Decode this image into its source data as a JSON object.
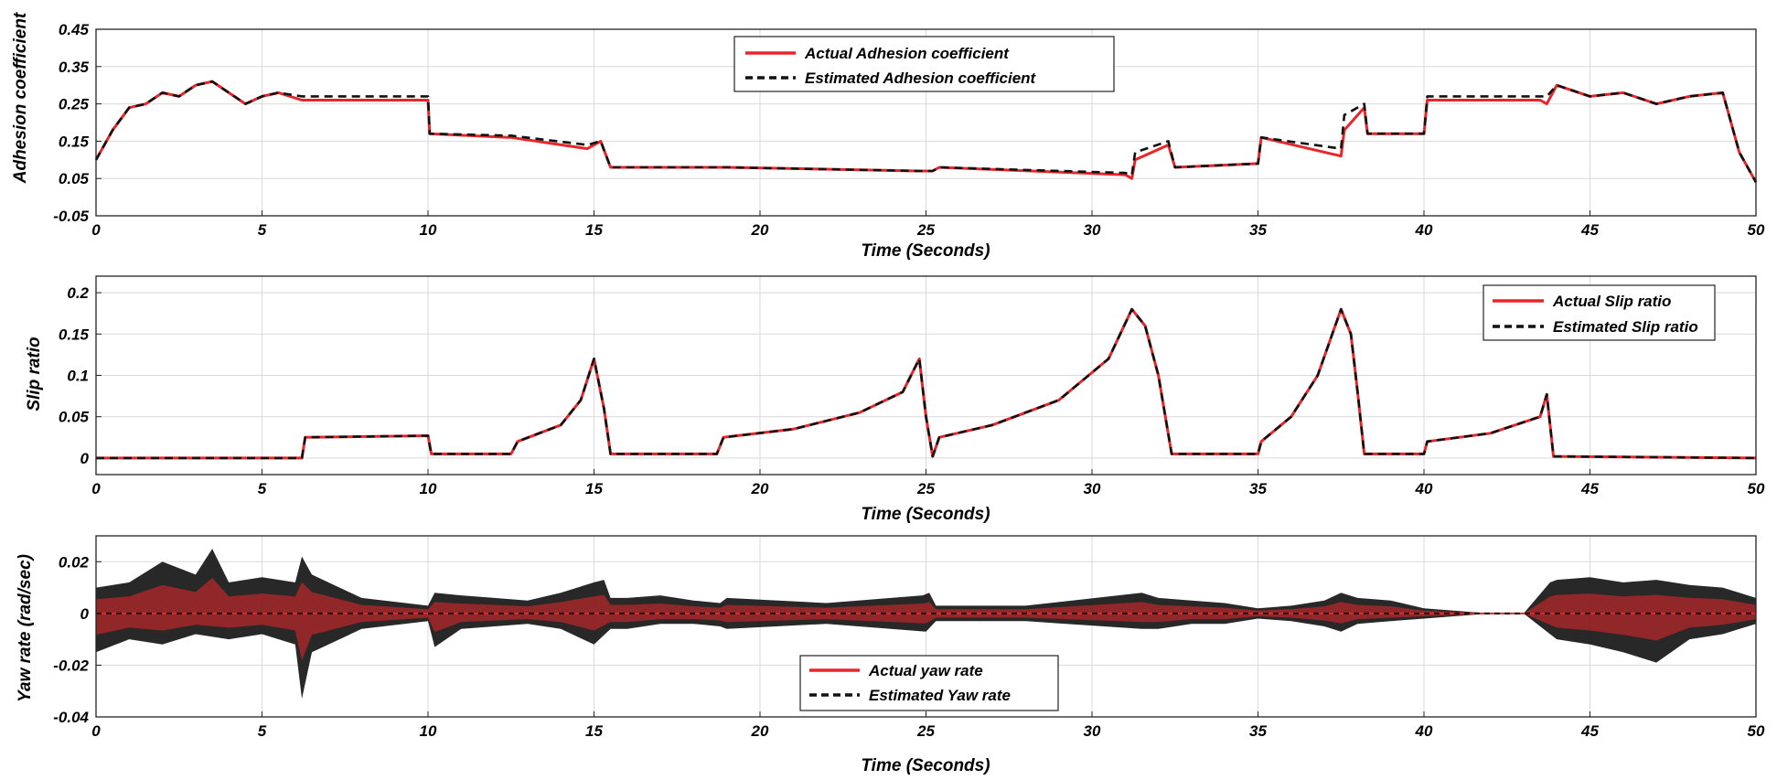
{
  "chart_data": [
    {
      "type": "line",
      "xlabel": "Time (Seconds)",
      "ylabel": "Adhesion coefficient",
      "xlim": [
        0,
        50
      ],
      "ylim": [
        -0.05,
        0.45
      ],
      "xticks": [
        0,
        5,
        10,
        15,
        20,
        25,
        30,
        35,
        40,
        45,
        50
      ],
      "yticks": [
        -0.05,
        0.05,
        0.15,
        0.25,
        0.35,
        0.45
      ],
      "ytick_labels": [
        "-0.05",
        "0.05",
        "0.15",
        "0.25",
        "0.35",
        "0.45"
      ],
      "grid": true,
      "legend": "top-center",
      "series": [
        {
          "name": "Actual Adhesion coefficient",
          "color": "#e8262a",
          "style": "solid",
          "x": [
            0,
            0.5,
            1,
            1.5,
            2,
            2.5,
            3,
            3.5,
            4,
            4.5,
            5,
            5.5,
            6.2,
            6.25,
            10,
            10.05,
            12.4,
            12.5,
            14.8,
            15.2,
            15.5,
            18.8,
            19,
            24.8,
            25.2,
            25.4,
            31,
            31.2,
            31.3,
            32.3,
            32.5,
            35,
            35.1,
            37.5,
            37.6,
            38.2,
            38.3,
            40,
            40.1,
            43.5,
            43.7,
            44,
            45,
            46,
            47,
            48,
            49,
            49.5,
            50
          ],
          "y": [
            0.1,
            0.18,
            0.24,
            0.25,
            0.28,
            0.27,
            0.3,
            0.31,
            0.28,
            0.25,
            0.27,
            0.28,
            0.26,
            0.26,
            0.26,
            0.17,
            0.16,
            0.16,
            0.13,
            0.15,
            0.08,
            0.08,
            0.08,
            0.07,
            0.07,
            0.08,
            0.06,
            0.05,
            0.1,
            0.14,
            0.08,
            0.09,
            0.16,
            0.11,
            0.18,
            0.24,
            0.17,
            0.17,
            0.26,
            0.26,
            0.25,
            0.3,
            0.27,
            0.28,
            0.25,
            0.27,
            0.28,
            0.12,
            0.04
          ]
        },
        {
          "name": "Estimated Adhesion coefficient",
          "color": "#111111",
          "style": "dashed",
          "x": [
            0,
            0.5,
            1,
            1.5,
            2,
            2.5,
            3,
            3.5,
            4,
            4.5,
            5,
            5.5,
            6.2,
            6.25,
            10,
            10.05,
            12.4,
            12.5,
            14.8,
            15.2,
            15.5,
            18.8,
            19,
            24.8,
            25.2,
            25.4,
            31,
            31.2,
            31.3,
            32.3,
            32.5,
            35,
            35.1,
            37.5,
            37.6,
            38.2,
            38.3,
            40,
            40.1,
            43.5,
            43.7,
            44,
            45,
            46,
            47,
            48,
            49,
            49.5,
            50
          ],
          "y": [
            0.1,
            0.18,
            0.24,
            0.25,
            0.28,
            0.27,
            0.3,
            0.31,
            0.28,
            0.25,
            0.27,
            0.28,
            0.27,
            0.27,
            0.27,
            0.17,
            0.165,
            0.165,
            0.14,
            0.15,
            0.08,
            0.08,
            0.08,
            0.07,
            0.07,
            0.08,
            0.065,
            0.06,
            0.12,
            0.15,
            0.08,
            0.09,
            0.16,
            0.13,
            0.22,
            0.25,
            0.17,
            0.17,
            0.27,
            0.27,
            0.27,
            0.3,
            0.27,
            0.28,
            0.25,
            0.27,
            0.28,
            0.12,
            0.04
          ]
        }
      ]
    },
    {
      "type": "line",
      "xlabel": "Time (Seconds)",
      "ylabel": "Slip ratio",
      "xlim": [
        0,
        50
      ],
      "ylim": [
        -0.02,
        0.22
      ],
      "xticks": [
        0,
        5,
        10,
        15,
        20,
        25,
        30,
        35,
        40,
        45,
        50
      ],
      "yticks": [
        0,
        0.05,
        0.1,
        0.15,
        0.2
      ],
      "ytick_labels": [
        "0",
        "0.05",
        "0.1",
        "0.15",
        "0.2"
      ],
      "grid": true,
      "legend": "top-right",
      "series": [
        {
          "name": "Actual Slip ratio",
          "color": "#e8262a",
          "style": "solid",
          "x": [
            0,
            6.2,
            6.3,
            10,
            10.1,
            12.5,
            12.7,
            14,
            14.6,
            15,
            15.3,
            15.5,
            18.7,
            18.9,
            21,
            23,
            24.3,
            24.8,
            25,
            25.2,
            25.4,
            27,
            29,
            30.5,
            31.2,
            31.6,
            32,
            32.4,
            35,
            35.1,
            36,
            36.8,
            37.5,
            37.8,
            38,
            38.2,
            40,
            40.1,
            42,
            43.5,
            43.7,
            43.9,
            50
          ],
          "y": [
            0,
            0,
            0.025,
            0.027,
            0.005,
            0.005,
            0.02,
            0.04,
            0.07,
            0.12,
            0.06,
            0.005,
            0.005,
            0.025,
            0.035,
            0.055,
            0.08,
            0.12,
            0.05,
            0.002,
            0.025,
            0.04,
            0.07,
            0.12,
            0.18,
            0.16,
            0.1,
            0.005,
            0.005,
            0.02,
            0.05,
            0.1,
            0.18,
            0.15,
            0.08,
            0.005,
            0.005,
            0.02,
            0.03,
            0.05,
            0.077,
            0.002,
            0
          ]
        },
        {
          "name": "Estimated Slip ratio",
          "color": "#111111",
          "style": "dashed",
          "x": [
            0,
            6.2,
            6.3,
            10,
            10.1,
            12.5,
            12.7,
            14,
            14.6,
            15,
            15.3,
            15.5,
            18.7,
            18.9,
            21,
            23,
            24.3,
            24.8,
            25,
            25.2,
            25.4,
            27,
            29,
            30.5,
            31.2,
            31.6,
            32,
            32.4,
            35,
            35.1,
            36,
            36.8,
            37.5,
            37.8,
            38,
            38.2,
            40,
            40.1,
            42,
            43.5,
            43.7,
            43.9,
            50
          ],
          "y": [
            0,
            0,
            0.025,
            0.027,
            0.005,
            0.005,
            0.02,
            0.04,
            0.07,
            0.12,
            0.06,
            0.005,
            0.005,
            0.025,
            0.035,
            0.055,
            0.08,
            0.12,
            0.05,
            0.002,
            0.025,
            0.04,
            0.07,
            0.12,
            0.18,
            0.16,
            0.1,
            0.005,
            0.005,
            0.02,
            0.05,
            0.1,
            0.18,
            0.15,
            0.08,
            0.005,
            0.005,
            0.02,
            0.03,
            0.05,
            0.077,
            0.002,
            0
          ]
        }
      ]
    },
    {
      "type": "line",
      "xlabel": "Time (Seconds)",
      "ylabel": "Yaw rate (rad/sec)",
      "xlim": [
        0,
        50
      ],
      "ylim": [
        -0.04,
        0.03
      ],
      "xticks": [
        0,
        5,
        10,
        15,
        20,
        25,
        30,
        35,
        40,
        45,
        50
      ],
      "yticks": [
        -0.04,
        -0.02,
        0,
        0.02
      ],
      "ytick_labels": [
        "-0.04",
        "-0.02",
        "0",
        "0.02"
      ],
      "grid": true,
      "legend": "bottom-center",
      "envelope_max": {
        "x": [
          0,
          1,
          2,
          3,
          3.5,
          4,
          5,
          6,
          6.2,
          6.5,
          8,
          10,
          10.2,
          11,
          12,
          13,
          14,
          15,
          15.3,
          15.5,
          16,
          17,
          18,
          18.8,
          19,
          22,
          24.9,
          25.1,
          25.3,
          28,
          31.5,
          32,
          33,
          34,
          35,
          36,
          37,
          37.5,
          38,
          39,
          40,
          42,
          43,
          43.8,
          44,
          45,
          46,
          47,
          48,
          49,
          50
        ],
        "y": [
          0.01,
          0.012,
          0.02,
          0.015,
          0.025,
          0.012,
          0.014,
          0.012,
          0.022,
          0.015,
          0.006,
          0.003,
          0.008,
          0.007,
          0.006,
          0.005,
          0.008,
          0.012,
          0.013,
          0.006,
          0.006,
          0.007,
          0.005,
          0.004,
          0.006,
          0.004,
          0.007,
          0.008,
          0.003,
          0.003,
          0.008,
          0.006,
          0.005,
          0.004,
          0.002,
          0.003,
          0.005,
          0.008,
          0.006,
          0.005,
          0.002,
          0.0,
          0.0,
          0.012,
          0.013,
          0.014,
          0.012,
          0.013,
          0.011,
          0.01,
          0.006
        ]
      },
      "envelope_min": {
        "x": [
          0,
          1,
          2,
          3,
          4,
          5,
          6,
          6.2,
          6.5,
          8,
          10,
          10.2,
          11,
          12,
          13,
          14,
          15,
          15.5,
          16,
          17,
          18,
          18.8,
          19,
          22,
          25,
          25.3,
          28,
          31.5,
          32,
          33,
          34,
          35,
          36,
          37,
          37.5,
          38,
          39,
          40,
          42,
          43,
          43.8,
          44,
          45,
          46,
          47,
          48,
          49,
          50
        ],
        "y": [
          -0.015,
          -0.01,
          -0.012,
          -0.008,
          -0.01,
          -0.008,
          -0.012,
          -0.033,
          -0.015,
          -0.006,
          -0.003,
          -0.013,
          -0.006,
          -0.005,
          -0.004,
          -0.006,
          -0.012,
          -0.006,
          -0.006,
          -0.004,
          -0.004,
          -0.005,
          -0.006,
          -0.004,
          -0.007,
          -0.003,
          -0.003,
          -0.006,
          -0.006,
          -0.004,
          -0.004,
          -0.002,
          -0.003,
          -0.005,
          -0.007,
          -0.004,
          -0.003,
          -0.002,
          0.0,
          0.0,
          -0.008,
          -0.01,
          -0.012,
          -0.015,
          -0.019,
          -0.01,
          -0.008,
          -0.004
        ]
      },
      "series": [
        {
          "name": "Actual yaw rate",
          "color": "#e8262a",
          "style": "solid"
        },
        {
          "name": "Estimated Yaw rate",
          "color": "#111111",
          "style": "dashed"
        }
      ]
    }
  ]
}
